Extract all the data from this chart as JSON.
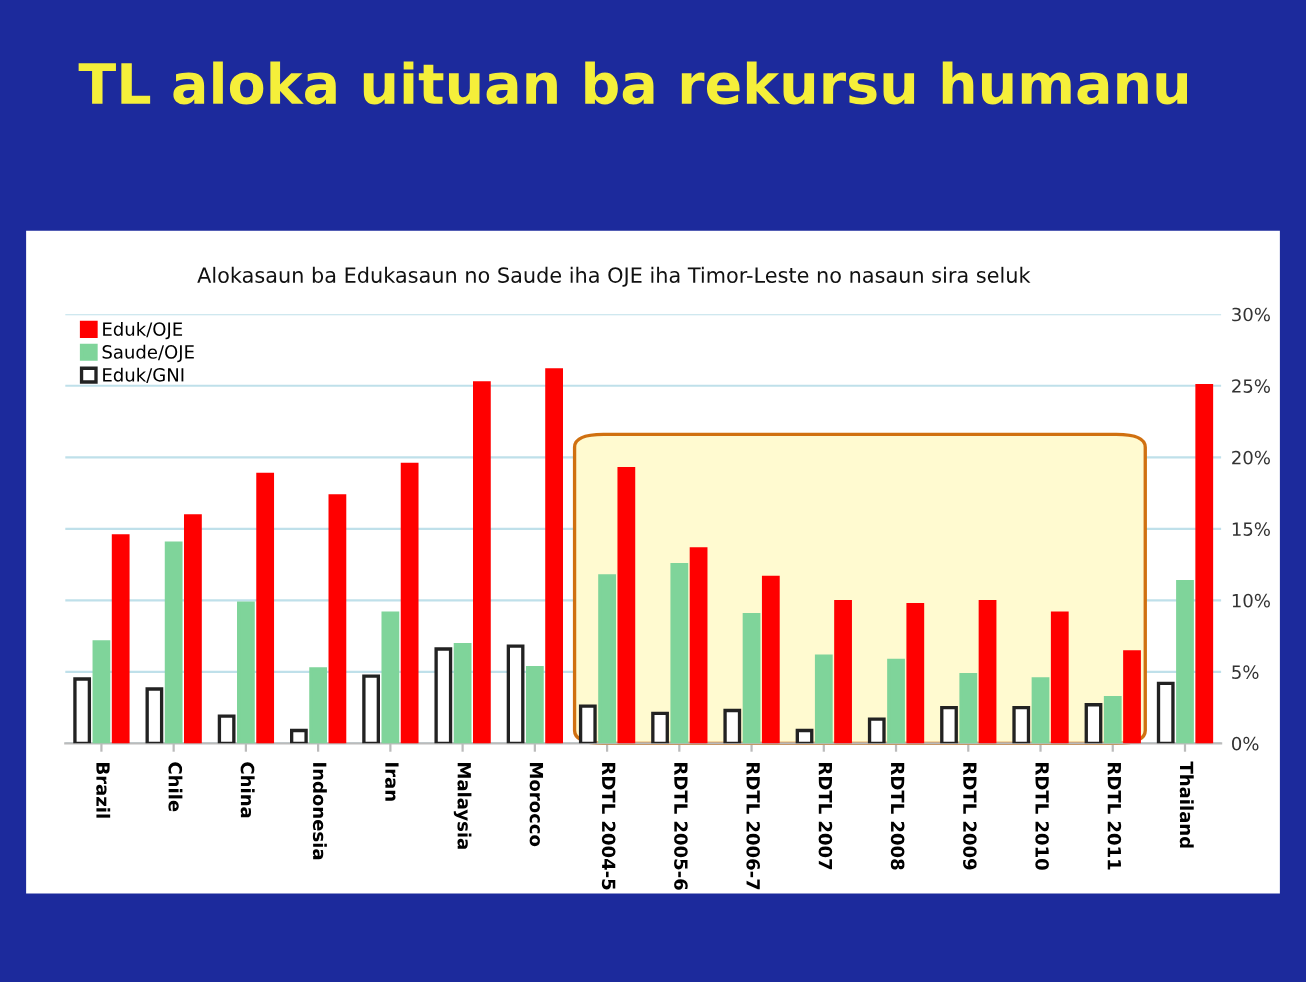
{
  "chart_data": {
    "type": "bar",
    "title": "TL aloka uituan ba rekursu humanu",
    "subtitle": "Alokasaun ba Edukasaun no Saude iha OJE iha Timor-Leste no nasaun sira seluk",
    "categories": [
      "Brazil",
      "Chile",
      "China",
      "Indonesia",
      "Iran",
      "Malaysia",
      "Morocco",
      "RDTL 2004-5",
      "RDTL 2005-6",
      "RDTL 2006-7",
      "RDTL 2007",
      "RDTL 2008",
      "RDTL 2009",
      "RDTL 2010",
      "RDTL 2011",
      "Thailand"
    ],
    "series": [
      {
        "name": "Eduk/OJE",
        "color": "#ff0000",
        "values": [
          14.5,
          15.9,
          18.8,
          17.3,
          19.5,
          25.2,
          26.1,
          19.2,
          13.6,
          11.6,
          9.9,
          9.7,
          9.9,
          9.1,
          6.4,
          25.0
        ]
      },
      {
        "name": "Saude/OJE",
        "color": "#7fd49a",
        "values": [
          7.1,
          14.0,
          9.8,
          5.2,
          9.1,
          6.9,
          5.3,
          11.7,
          12.5,
          9.0,
          6.1,
          5.8,
          4.8,
          4.5,
          3.2,
          11.3
        ]
      },
      {
        "name": "Eduk/GNI",
        "color": "#ffffff",
        "values": [
          4.5,
          3.8,
          1.9,
          0.9,
          4.7,
          6.6,
          6.8,
          2.6,
          2.1,
          2.3,
          0.9,
          1.7,
          2.5,
          2.5,
          2.7,
          4.2
        ]
      }
    ],
    "ylim": [
      0,
      30
    ],
    "yticks": [
      {
        "value": 0,
        "label": "0%"
      },
      {
        "value": 5,
        "label": "5%"
      },
      {
        "value": 10,
        "label": "10%"
      },
      {
        "value": 15,
        "label": "15%"
      },
      {
        "value": 20,
        "label": "20%"
      },
      {
        "value": 25,
        "label": "25%"
      },
      {
        "value": 30,
        "label": "30%"
      }
    ],
    "grid": "y",
    "legend": "top left",
    "bands": [
      {
        "axis": "x",
        "from": "RDTL 2004-5",
        "to": "RDTL 2011",
        "color": "#fffad0"
      }
    ]
  }
}
